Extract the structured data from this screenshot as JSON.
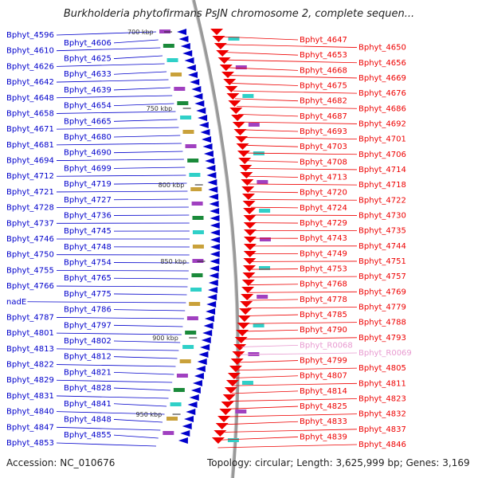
{
  "header": {
    "title": "Burkholderia phytofirmans PsJN chromosome 2, complete sequen..."
  },
  "footer": {
    "accession": "Accession: NC_010676",
    "topology": "Topology: circular; Length: 3,625,999 bp; Genes: 3,169"
  },
  "colors": {
    "minus_strand": "#0000cc",
    "plus_strand": "#ee0000",
    "rna": "#e89ad0",
    "backbone": "#888888"
  },
  "scale_ticks": [
    "700 kbp",
    "750 kbp",
    "800 kbp",
    "850 kbp",
    "900 kbp",
    "950 kbp"
  ],
  "left_genes": [
    "Bphyt_4596",
    "Bphyt_4606",
    "Bphyt_4610",
    "Bphyt_4625",
    "Bphyt_4626",
    "Bphyt_4633",
    "Bphyt_4642",
    "Bphyt_4639",
    "Bphyt_4648",
    "Bphyt_4654",
    "Bphyt_4658",
    "Bphyt_4665",
    "Bphyt_4671",
    "Bphyt_4680",
    "Bphyt_4681",
    "Bphyt_4690",
    "Bphyt_4694",
    "Bphyt_4699",
    "Bphyt_4712",
    "Bphyt_4719",
    "Bphyt_4721",
    "Bphyt_4727",
    "Bphyt_4728",
    "Bphyt_4736",
    "Bphyt_4737",
    "Bphyt_4745",
    "Bphyt_4746",
    "Bphyt_4748",
    "Bphyt_4750",
    "Bphyt_4754",
    "Bphyt_4755",
    "Bphyt_4765",
    "Bphyt_4766",
    "Bphyt_4775",
    "nadE",
    "Bphyt_4786",
    "Bphyt_4787",
    "Bphyt_4797",
    "Bphyt_4801",
    "Bphyt_4802",
    "Bphyt_4813",
    "Bphyt_4812",
    "Bphyt_4822",
    "Bphyt_4821",
    "Bphyt_4829",
    "Bphyt_4828",
    "Bphyt_4831",
    "Bphyt_4841",
    "Bphyt_4840",
    "Bphyt_4848",
    "Bphyt_4847",
    "Bphyt_4855",
    "Bphyt_4853"
  ],
  "right_genes": [
    "Bphyt_4647",
    "Bphyt_4650",
    "Bphyt_4653",
    "Bphyt_4656",
    "Bphyt_4668",
    "Bphyt_4669",
    "Bphyt_4675",
    "Bphyt_4676",
    "Bphyt_4682",
    "Bphyt_4686",
    "Bphyt_4687",
    "Bphyt_4692",
    "Bphyt_4693",
    "Bphyt_4701",
    "Bphyt_4703",
    "Bphyt_4706",
    "Bphyt_4708",
    "Bphyt_4714",
    "Bphyt_4713",
    "Bphyt_4718",
    "Bphyt_4720",
    "Bphyt_4722",
    "Bphyt_4724",
    "Bphyt_4730",
    "Bphyt_4729",
    "Bphyt_4735",
    "Bphyt_4743",
    "Bphyt_4744",
    "Bphyt_4749",
    "Bphyt_4751",
    "Bphyt_4753",
    "Bphyt_4757",
    "Bphyt_4768",
    "Bphyt_4769",
    "Bphyt_4778",
    "Bphyt_4779",
    "Bphyt_4785",
    "Bphyt_4788",
    "Bphyt_4790",
    "Bphyt_4793",
    "Bphyt_R0068",
    "Bphyt_R0069",
    "Bphyt_4799",
    "Bphyt_4805",
    "Bphyt_4807",
    "Bphyt_4811",
    "Bphyt_4814",
    "Bphyt_4823",
    "Bphyt_4825",
    "Bphyt_4832",
    "Bphyt_4833",
    "Bphyt_4837",
    "Bphyt_4839",
    "Bphyt_4846"
  ]
}
